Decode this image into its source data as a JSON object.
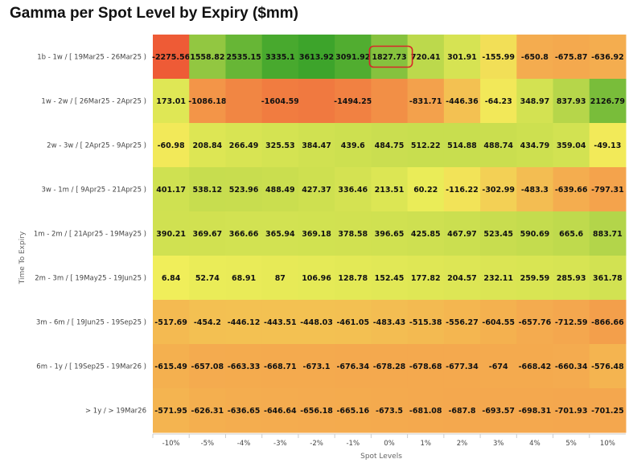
{
  "title": "Gamma per Spot Level by Expiry ($mm)",
  "chart_data": {
    "type": "heatmap",
    "title": "Gamma per Spot Level by Expiry ($mm)",
    "xlabel": "Spot Levels",
    "ylabel": "Time To Expiry",
    "x_categories": [
      "-10%",
      "-5%",
      "-4%",
      "-3%",
      "-2%",
      "-1%",
      "0%",
      "1%",
      "2%",
      "3%",
      "4%",
      "5%",
      "10%"
    ],
    "y_categories": [
      "1b - 1w / [ 19Mar25 - 26Mar25 )",
      "1w - 2w / [ 26Mar25 - 2Apr25 )",
      "2w - 3w / [ 2Apr25 - 9Apr25 )",
      "3w - 1m / [ 9Apr25 - 21Apr25 )",
      "1m - 2m / [ 21Apr25 - 19May25 )",
      "2m - 3m / [ 19May25 - 19Jun25 )",
      "3m - 6m / [ 19Jun25 - 19Sep25 )",
      "6m - 1y / [ 19Sep25 - 19Mar26 )",
      "> 1y / > 19Mar26"
    ],
    "values": [
      [
        -2275.56,
        1558.82,
        2535.15,
        3335.1,
        3613.92,
        3091.92,
        1827.73,
        720.41,
        301.91,
        -155.99,
        -650.8,
        -675.87,
        -636.92
      ],
      [
        173.01,
        -1086.18,
        -1400,
        -1604.59,
        -1650,
        -1494.25,
        -1200,
        -831.71,
        -446.36,
        -64.23,
        348.97,
        837.93,
        2126.79
      ],
      [
        -60.98,
        208.84,
        266.49,
        325.53,
        384.47,
        439.6,
        484.75,
        512.22,
        514.88,
        488.74,
        434.79,
        359.04,
        -49.13
      ],
      [
        401.17,
        538.12,
        523.96,
        488.49,
        427.37,
        336.46,
        213.51,
        60.22,
        -116.22,
        -302.99,
        -483.3,
        -639.66,
        -797.31
      ],
      [
        390.21,
        369.67,
        366.66,
        365.94,
        369.18,
        378.58,
        396.65,
        425.85,
        467.97,
        523.45,
        590.69,
        665.6,
        883.71
      ],
      [
        6.84,
        52.74,
        68.91,
        87,
        106.96,
        128.78,
        152.45,
        177.82,
        204.57,
        232.11,
        259.59,
        285.93,
        361.78
      ],
      [
        -517.69,
        -454.2,
        -446.12,
        -443.51,
        -448.03,
        -461.05,
        -483.43,
        -515.38,
        -556.27,
        -604.55,
        -657.76,
        -712.59,
        -866.66
      ],
      [
        -615.49,
        -657.08,
        -663.33,
        -668.71,
        -673.1,
        -676.34,
        -678.28,
        -678.68,
        -677.34,
        -674,
        -668.42,
        -660.34,
        -576.48
      ],
      [
        -571.95,
        -626.31,
        -636.65,
        -646.64,
        -656.18,
        -665.16,
        -673.5,
        -681.08,
        -687.8,
        -693.57,
        -698.31,
        -701.93,
        -701.25
      ]
    ],
    "labels": [
      [
        "-2275.56",
        "1558.82",
        "2535.15",
        "3335.1",
        "3613.92",
        "3091.92",
        "1827.73",
        "720.41",
        "301.91",
        "-155.99",
        "-650.8",
        "-675.87",
        "-636.92"
      ],
      [
        "173.01",
        "-1086.18",
        "",
        "-1604.59",
        "",
        "-1494.25",
        "",
        "-831.71",
        "-446.36",
        "-64.23",
        "348.97",
        "837.93",
        "2126.79"
      ],
      [
        "-60.98",
        "208.84",
        "266.49",
        "325.53",
        "384.47",
        "439.6",
        "484.75",
        "512.22",
        "514.88",
        "488.74",
        "434.79",
        "359.04",
        "-49.13"
      ],
      [
        "401.17",
        "538.12",
        "523.96",
        "488.49",
        "427.37",
        "336.46",
        "213.51",
        "60.22",
        "-116.22",
        "-302.99",
        "-483.3",
        "-639.66",
        "-797.31"
      ],
      [
        "390.21",
        "369.67",
        "366.66",
        "365.94",
        "369.18",
        "378.58",
        "396.65",
        "425.85",
        "467.97",
        "523.45",
        "590.69",
        "665.6",
        "883.71"
      ],
      [
        "6.84",
        "52.74",
        "68.91",
        "87",
        "106.96",
        "128.78",
        "152.45",
        "177.82",
        "204.57",
        "232.11",
        "259.59",
        "285.93",
        "361.78"
      ],
      [
        "-517.69",
        "-454.2",
        "-446.12",
        "-443.51",
        "-448.03",
        "-461.05",
        "-483.43",
        "-515.38",
        "-556.27",
        "-604.55",
        "-657.76",
        "-712.59",
        "-866.66"
      ],
      [
        "-615.49",
        "-657.08",
        "-663.33",
        "-668.71",
        "-673.1",
        "-676.34",
        "-678.28",
        "-678.68",
        "-677.34",
        "-674",
        "-668.42",
        "-660.34",
        "-576.48"
      ],
      [
        "-571.95",
        "-626.31",
        "-636.65",
        "-646.64",
        "-656.18",
        "-665.16",
        "-673.5",
        "-681.08",
        "-687.8",
        "-693.57",
        "-698.31",
        "-701.93",
        "-701.25"
      ]
    ],
    "highlighted_cell": {
      "row": 0,
      "col": 6,
      "outline_color": "#d9262a"
    },
    "color_scale": {
      "negative": "#ee5a36",
      "neutral": "#f2ef5a",
      "positive": "#3aa32a"
    },
    "grid": false,
    "legend": "none"
  }
}
